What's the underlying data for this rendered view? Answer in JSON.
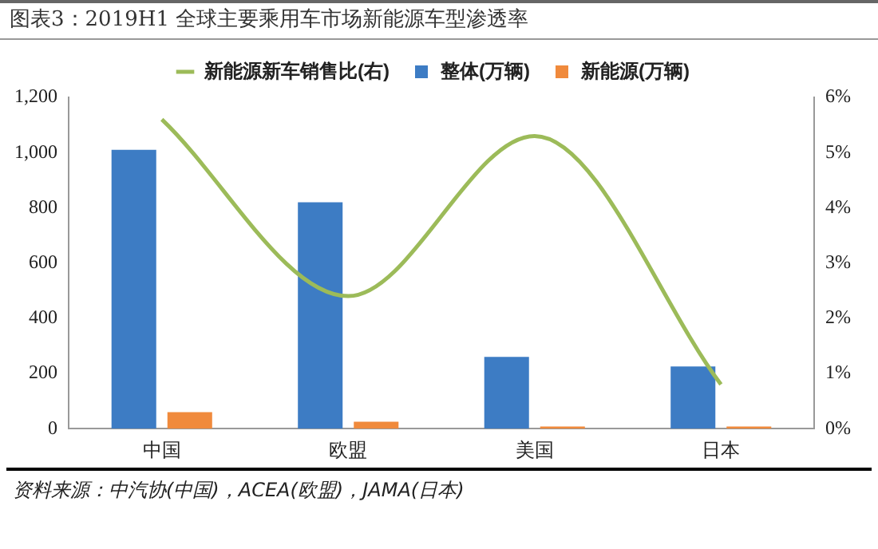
{
  "chart_data": {
    "type": "bar",
    "title": "图表3：2019H1 全球主要乘用车市场新能源车型渗透率",
    "categories": [
      "中国",
      "欧盟",
      "美国",
      "日本"
    ],
    "series": [
      {
        "name": "整体(万辆)",
        "color": "#3d7cc4",
        "values": [
          1010,
          820,
          260,
          225
        ]
      },
      {
        "name": "新能源(万辆)",
        "color": "#f08a3c",
        "values": [
          60,
          25,
          8,
          8
        ]
      },
      {
        "name": "新能源新车销售比(右)",
        "type": "line",
        "axis": "y2",
        "color": "#9cbb59",
        "values": [
          5.6,
          2.4,
          5.3,
          0.8
        ]
      }
    ],
    "ylim": [
      0,
      1200
    ],
    "yticks": [
      0,
      200,
      400,
      600,
      800,
      {
        "value": 1000,
        "label": "1,000"
      },
      {
        "value": 1200,
        "label": "1,200"
      }
    ],
    "y2lim": [
      0,
      6
    ],
    "y2ticks": [
      {
        "value": 0,
        "label": "0%"
      },
      {
        "value": 1,
        "label": "1%"
      },
      {
        "value": 2,
        "label": "2%"
      },
      {
        "value": 3,
        "label": "3%"
      },
      {
        "value": 4,
        "label": "4%"
      },
      {
        "value": 5,
        "label": "5%"
      },
      {
        "value": 6,
        "label": "6%"
      }
    ],
    "grid": false,
    "legend": "top",
    "marker": "none",
    "annotations": [
      "资料来源：中汽协(中国)，ACEA(欧盟)，JAMA(日本)"
    ]
  }
}
